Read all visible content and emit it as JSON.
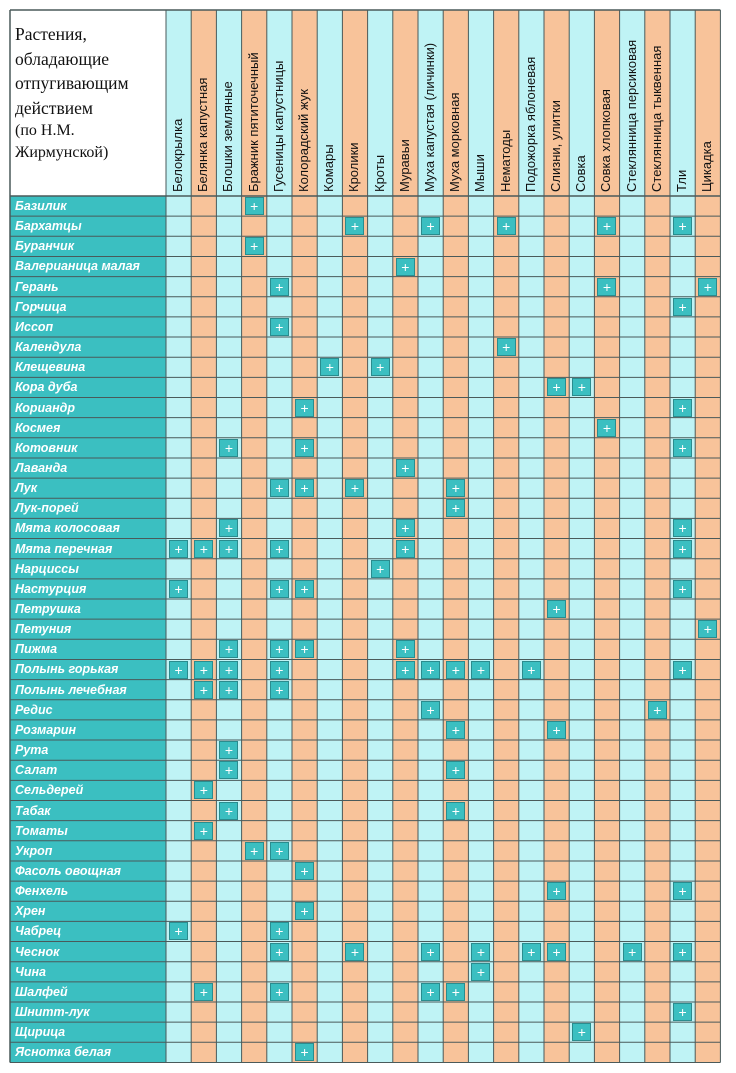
{
  "title_lines": [
    "Растения,",
    "обладающие",
    "отпугивающим",
    "действием"
  ],
  "subtitle_lines": [
    "(по Н.М.",
    "Жирмунской)"
  ],
  "mark_symbol": "+",
  "colors": {
    "cyan": "#bff3f5",
    "orange": "#f8c39a",
    "header_teal": "#3bbfc1",
    "grid": "#4a5a5a",
    "mark_border": "#2a8c8e"
  },
  "columns": [
    "Белокрылка",
    "Белянка капустная",
    "Блошки земляные",
    "Бражник пятиточечный",
    "Гусеницы капустницы",
    "Колорадский жук",
    "Комары",
    "Кролики",
    "Кроты",
    "Муравьи",
    "Муха капустая (личинки)",
    "Муха морковная",
    "Мыши",
    "Нематоды",
    "Подожорка яблоневая",
    "Слизни, улитки",
    "Совка",
    "Совка хлопковая",
    "Стеклянница персиковая",
    "Стеклянница тыквенная",
    "Тли",
    "Цикадка"
  ],
  "rows": [
    {
      "name": "Базилик",
      "marks": [
        3
      ]
    },
    {
      "name": "Бархатцы",
      "marks": [
        7,
        10,
        13,
        17,
        20
      ]
    },
    {
      "name": "Бурaнчик",
      "marks": [
        3
      ]
    },
    {
      "name": "Валерианица малая",
      "marks": [
        9
      ]
    },
    {
      "name": "Герань",
      "marks": [
        4,
        17,
        21
      ]
    },
    {
      "name": "Горчица",
      "marks": [
        20
      ]
    },
    {
      "name": "Иссоп",
      "marks": [
        4
      ]
    },
    {
      "name": "Календула",
      "marks": [
        13
      ]
    },
    {
      "name": "Клещевина",
      "marks": [
        6,
        8
      ]
    },
    {
      "name": "Кора дуба",
      "marks": [
        15,
        16
      ]
    },
    {
      "name": "Кориандр",
      "marks": [
        5,
        20
      ]
    },
    {
      "name": "Космея",
      "marks": [
        17
      ]
    },
    {
      "name": "Котовник",
      "marks": [
        2,
        5,
        20
      ]
    },
    {
      "name": "Лаванда",
      "marks": [
        9
      ]
    },
    {
      "name": "Лук",
      "marks": [
        4,
        5,
        7,
        11
      ]
    },
    {
      "name": "Лук-порей",
      "marks": [
        11
      ]
    },
    {
      "name": "Мята колосовая",
      "marks": [
        2,
        9,
        20
      ]
    },
    {
      "name": "Мята перечная",
      "marks": [
        0,
        1,
        2,
        4,
        9,
        20
      ]
    },
    {
      "name": "Нарциссы",
      "marks": [
        8
      ]
    },
    {
      "name": "Настурция",
      "marks": [
        0,
        4,
        5,
        20
      ]
    },
    {
      "name": "Петрушка",
      "marks": [
        15
      ]
    },
    {
      "name": "Петуния",
      "marks": [
        21
      ]
    },
    {
      "name": "Пижма",
      "marks": [
        2,
        4,
        5,
        9
      ]
    },
    {
      "name": "Полынь горькая",
      "marks": [
        0,
        1,
        2,
        4,
        9,
        10,
        11,
        12,
        14,
        20
      ]
    },
    {
      "name": "Полынь лечебная",
      "marks": [
        1,
        2,
        4
      ]
    },
    {
      "name": "Редис",
      "marks": [
        10,
        19
      ]
    },
    {
      "name": "Розмарин",
      "marks": [
        11,
        15
      ]
    },
    {
      "name": "Рута",
      "marks": [
        2
      ]
    },
    {
      "name": "Салат",
      "marks": [
        2,
        11
      ]
    },
    {
      "name": "Сельдерей",
      "marks": [
        1
      ]
    },
    {
      "name": "Табак",
      "marks": [
        2,
        11
      ]
    },
    {
      "name": "Томаты",
      "marks": [
        1
      ]
    },
    {
      "name": "Укроп",
      "marks": [
        3,
        4
      ]
    },
    {
      "name": "Фасоль овощная",
      "marks": [
        5
      ]
    },
    {
      "name": "Фенхель",
      "marks": [
        15,
        20
      ]
    },
    {
      "name": "Хрен",
      "marks": [
        5
      ]
    },
    {
      "name": "Чабрец",
      "marks": [
        0,
        4
      ]
    },
    {
      "name": "Чеснок",
      "marks": [
        4,
        7,
        10,
        12,
        14,
        15,
        18,
        20
      ]
    },
    {
      "name": "Чина",
      "marks": [
        12
      ]
    },
    {
      "name": "Шалфей",
      "marks": [
        1,
        4,
        10,
        11
      ]
    },
    {
      "name": "Шнитт-лук",
      "marks": [
        20
      ]
    },
    {
      "name": "Щирица",
      "marks": [
        16
      ]
    },
    {
      "name": "Ясноткa белая",
      "marks": [
        5
      ]
    }
  ]
}
